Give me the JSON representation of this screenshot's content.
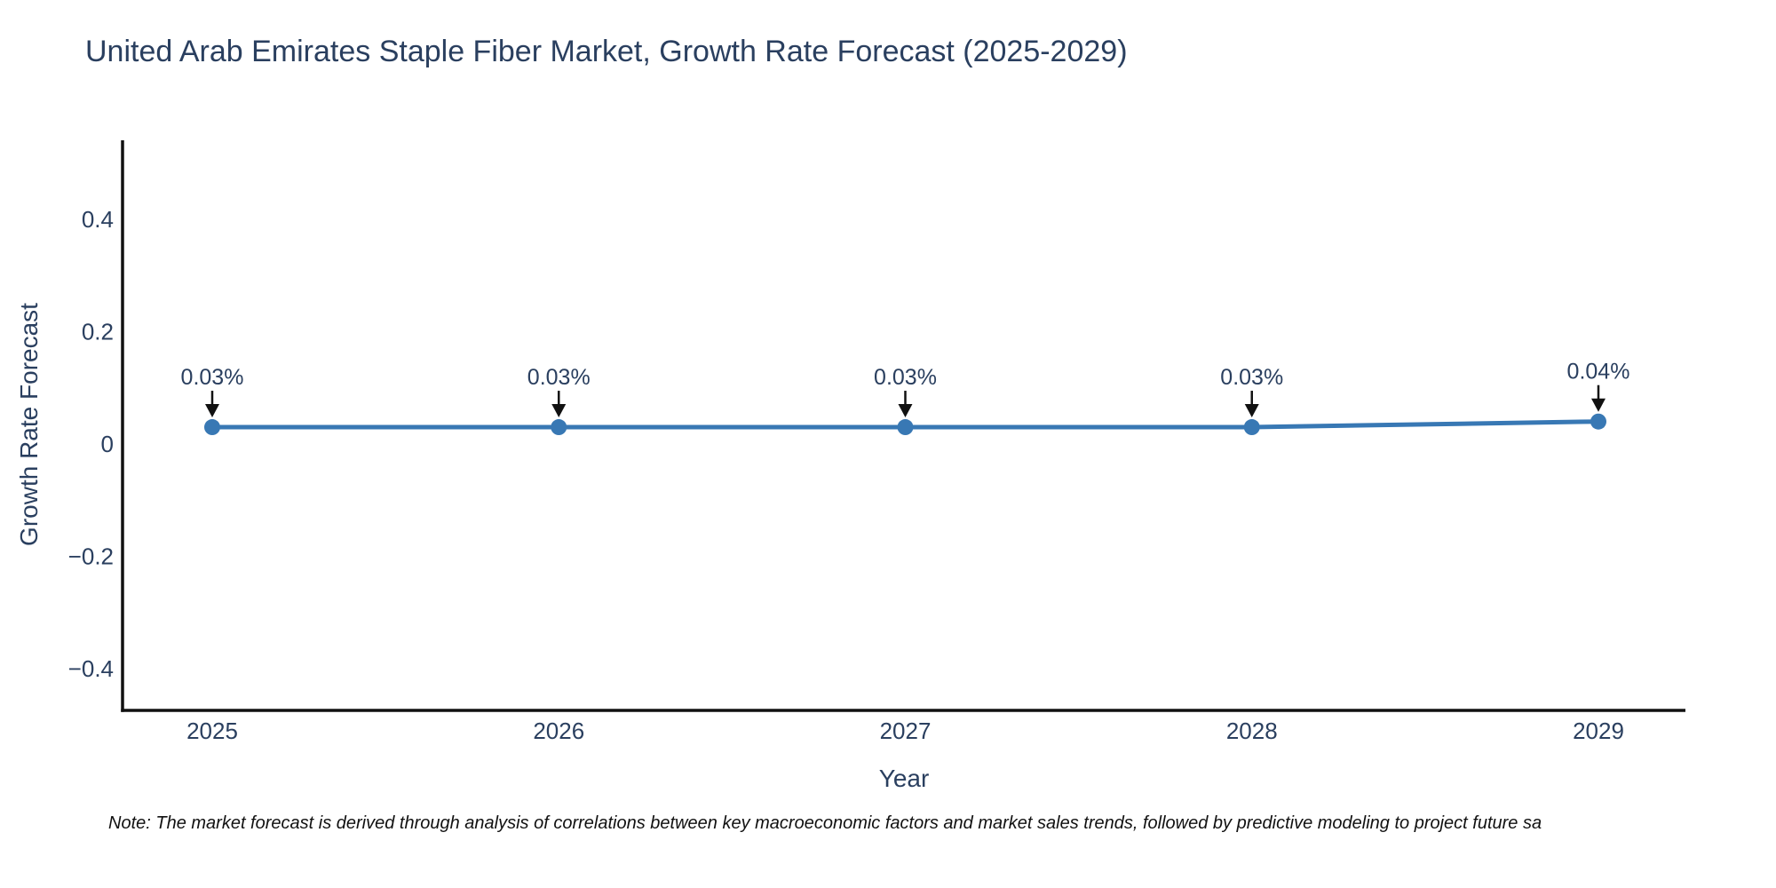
{
  "chart_data": {
    "type": "line",
    "title": "United Arab Emirates Staple Fiber Market, Growth Rate Forecast (2025-2029)",
    "xlabel": "Year",
    "ylabel": "Growth Rate Forecast",
    "x": [
      2025,
      2026,
      2027,
      2028,
      2029
    ],
    "series": [
      {
        "name": "Growth Rate Forecast",
        "values": [
          0.03,
          0.03,
          0.03,
          0.03,
          0.04
        ]
      }
    ],
    "point_annotations": [
      "0.03%",
      "0.03%",
      "0.03%",
      "0.03%",
      "0.04%"
    ],
    "yticks": [
      0.4,
      0.2,
      0,
      -0.2,
      -0.4
    ],
    "ytick_labels": [
      "0.4",
      "0.2",
      "0",
      "−0.2",
      "−0.4"
    ],
    "xtick_labels": [
      "2025",
      "2026",
      "2027",
      "2028",
      "2029"
    ],
    "ylim": [
      -0.47,
      0.54
    ],
    "grid": false,
    "legend_position": "none",
    "colors": {
      "line": "#3878b4",
      "marker": "#3878b4",
      "axis": "#111111",
      "arrow": "#111111",
      "text": "#2a3f5f"
    }
  },
  "note": "Note: The market forecast is derived through analysis of correlations between key macroeconomic factors and market sales trends, followed by predictive modeling to project future sa"
}
